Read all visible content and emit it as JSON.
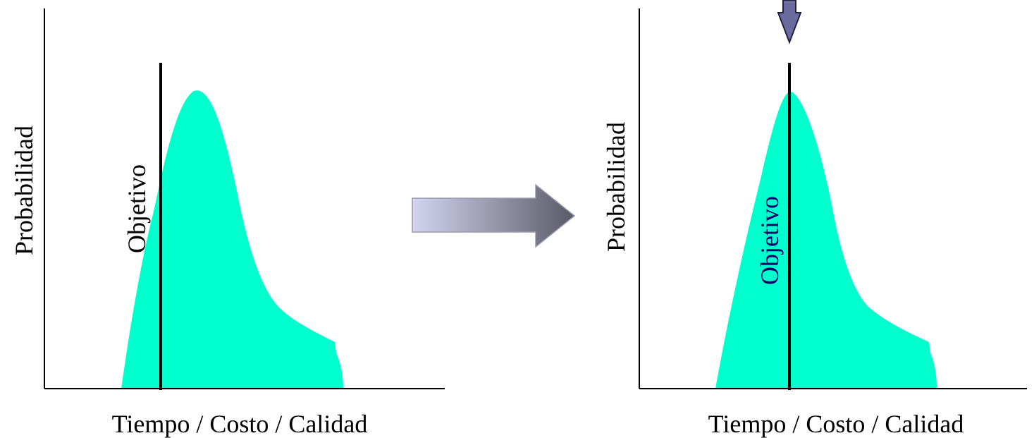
{
  "colors": {
    "curve_fill": "#00FFCC",
    "axis": "#000000",
    "target_line": "#000000",
    "left_target_label": "#000000",
    "right_target_label": "#000066",
    "arrow_gradient_start": "#D2D4F0",
    "arrow_gradient_end": "#5A5A66",
    "down_arrow_fill": "#6B6B9E",
    "down_arrow_stroke": "#1F1F3F"
  },
  "left_panel": {
    "y_axis_label": "Probabilidad",
    "x_axis_label": "Tiempo / Costo / Calidad",
    "target_label": "Objetivo"
  },
  "right_panel": {
    "y_axis_label": "Probabilidad",
    "x_axis_label": "Tiempo / Costo / Calidad",
    "target_label": "Objetivo"
  }
}
